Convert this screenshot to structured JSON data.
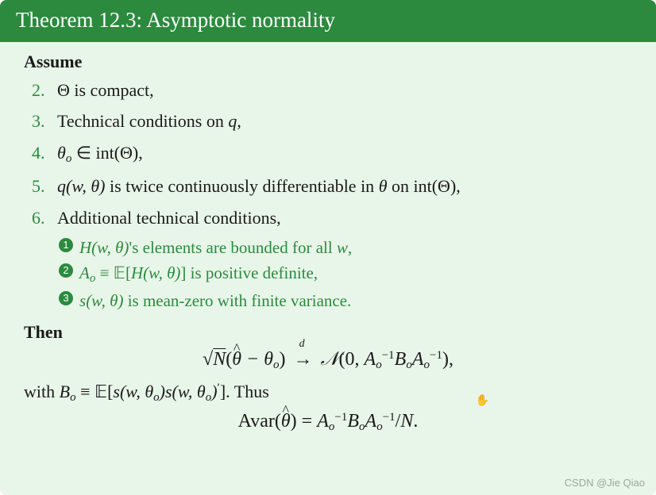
{
  "colors": {
    "header_bg": "#2b8a3e",
    "header_text": "#ffffff",
    "body_bg": "#e8f5e9",
    "text": "#1a1a1a",
    "accent": "#2b8a3e",
    "watermark": "#9aa89c"
  },
  "typography": {
    "title_fontsize": 27,
    "body_fontsize": 22,
    "sub_fontsize": 21,
    "eq_fontsize": 24,
    "font_family": "Georgia, serif"
  },
  "header": {
    "title": "Theorem 12.3: Asymptotic normality"
  },
  "assume_label": "Assume",
  "items": {
    "i2": "Θ is compact,",
    "i3_pre": "Technical conditions on ",
    "i3_var": "q",
    "i3_post": ",",
    "i4_var": "θ",
    "i4_sub": "o",
    "i4_rel": " ∈ int(Θ),",
    "i5_fn": "q",
    "i5_args": "(w, θ)",
    "i5_text": " is twice continuously differentiable in ",
    "i5_var": "θ",
    "i5_post": " on int(Θ),",
    "i6": "Additional technical conditions,",
    "s1_fn": "H",
    "s1_args": "(w, θ)",
    "s1_text": "'s elements are bounded for all ",
    "s1_var": "w",
    "s1_post": ",",
    "s2_var": "A",
    "s2_sub": "o",
    "s2_eq": " ≡ ",
    "s2_exp": "𝔼",
    "s2_br": "[",
    "s2_fn": "H",
    "s2_args": "(w, θ)",
    "s2_br2": "]",
    "s2_text": " is positive definite,",
    "s3_fn": "s",
    "s3_args": "(w, θ)",
    "s3_text": " is mean-zero with finite variance."
  },
  "then_label": "Then",
  "eq1": {
    "sqrt_sym": "√",
    "N": "N",
    "lpar": "(",
    "theta_hat": "θ",
    "minus": " − ",
    "theta": "θ",
    "sub_o": "o",
    "rpar": ")",
    "arrow": "→",
    "d": "d",
    "calN": "𝒩",
    "zero": "0, ",
    "A": "A",
    "inv": "−1",
    "B": "B",
    "comma_end": "),"
  },
  "with_text": {
    "with": "with ",
    "B": "B",
    "sub_o": "o",
    "eq": " ≡ ",
    "exp": "𝔼",
    "lbr": "[",
    "s": "s",
    "args1": "(w, θ",
    "rpar1": ")",
    "args2": "(w, θ",
    "rpar2": ")",
    "prime": "′",
    "rbr": "].",
    "thus": " Thus"
  },
  "eq2": {
    "Avar": "Avar",
    "lpar": "(",
    "theta_hat": "θ",
    "rpar": ")",
    "eq": " = ",
    "A": "A",
    "sub_o": "o",
    "inv": "−1",
    "B": "B",
    "slash": "/",
    "N": "N",
    "dot": "."
  },
  "watermark": "CSDN @Jie Qiao"
}
